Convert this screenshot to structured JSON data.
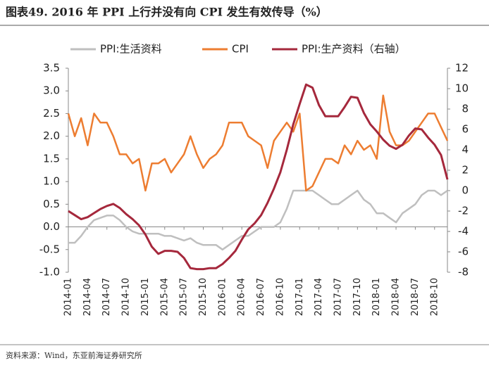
{
  "chart_data": {
    "type": "line",
    "title": "图表49. 2016 年 PPI 上行并没有向 CPI 发生有效传导（%）",
    "source": "资料来源：Wind，东亚前海证券研究所",
    "categories": [
      "2014-01",
      null,
      null,
      "2014-04",
      null,
      null,
      "2014-07",
      null,
      null,
      "2014-10",
      null,
      null,
      "2015-01",
      null,
      null,
      "2015-04",
      null,
      null,
      "2015-07",
      null,
      null,
      "2015-10",
      null,
      null,
      "2016-01",
      null,
      null,
      "2016-04",
      null,
      null,
      "2016-07",
      null,
      null,
      "2016-10",
      null,
      null,
      "2017-01",
      null,
      null,
      "2017-04",
      null,
      null,
      "2017-07",
      null,
      null,
      "2017-10",
      null,
      null,
      "2018-01",
      null,
      null,
      "2018-04",
      null,
      null,
      "2018-07",
      null,
      null,
      "2018-10",
      null,
      null
    ],
    "ylim": [
      -1.0,
      3.5
    ],
    "yticks": [
      {
        "value": -1.0,
        "label": "-1.0"
      },
      -0.5,
      {
        "value": 0.0,
        "label": "0.0"
      },
      0.5,
      {
        "value": 1.0,
        "label": "1.0"
      },
      1.5,
      {
        "value": 2.0,
        "label": "2.0"
      },
      2.5,
      {
        "value": 3.0,
        "label": "3.0"
      },
      3.5
    ],
    "y2lim": [
      -8,
      12
    ],
    "y2ticks": [
      -8,
      -6,
      -4,
      -2,
      0,
      2,
      4,
      6,
      8,
      10,
      12
    ],
    "legend": "top",
    "series": [
      {
        "name": "PPI:生活资料",
        "color": "#bfbfbf",
        "values": [
          -0.35,
          -0.35,
          -0.2,
          0.0,
          0.15,
          0.2,
          0.25,
          0.25,
          0.15,
          0.0,
          -0.1,
          -0.15,
          -0.15,
          -0.15,
          -0.15,
          -0.2,
          -0.2,
          -0.25,
          -0.3,
          -0.25,
          -0.35,
          -0.4,
          -0.4,
          -0.4,
          -0.5,
          -0.4,
          -0.3,
          -0.2,
          -0.2,
          -0.1,
          0.0,
          0.0,
          0.0,
          0.1,
          0.4,
          0.8,
          0.8,
          0.8,
          0.8,
          0.7,
          0.6,
          0.5,
          0.5,
          0.6,
          0.7,
          0.8,
          0.6,
          0.5,
          0.3,
          0.3,
          0.2,
          0.1,
          0.3,
          0.4,
          0.5,
          0.7,
          0.8,
          0.8,
          0.7,
          0.8
        ]
      },
      {
        "name": "CPI",
        "color": "#ed7d31",
        "values": [
          2.5,
          2.0,
          2.4,
          1.8,
          2.5,
          2.3,
          2.3,
          2.0,
          1.6,
          1.6,
          1.4,
          1.5,
          0.8,
          1.4,
          1.4,
          1.5,
          1.2,
          1.4,
          1.6,
          2.0,
          1.6,
          1.3,
          1.5,
          1.6,
          1.8,
          2.3,
          2.3,
          2.3,
          2.0,
          1.9,
          1.8,
          1.3,
          1.9,
          2.1,
          2.3,
          2.1,
          2.5,
          0.8,
          0.9,
          1.2,
          1.5,
          1.5,
          1.4,
          1.8,
          1.6,
          1.9,
          1.7,
          1.8,
          1.5,
          2.9,
          2.1,
          1.8,
          1.8,
          1.9,
          2.1,
          2.3,
          2.5,
          2.5,
          2.2,
          1.9
        ]
      },
      {
        "name": "PPI:生产资料（右轴）",
        "color": "#a5283c",
        "axis": "y2",
        "values": [
          -2.0,
          -2.4,
          -2.8,
          -2.6,
          -2.2,
          -1.8,
          -1.5,
          -1.3,
          -1.7,
          -2.3,
          -2.8,
          -3.4,
          -4.3,
          -5.5,
          -6.2,
          -5.9,
          -5.9,
          -6.0,
          -6.6,
          -7.6,
          -7.7,
          -7.7,
          -7.6,
          -7.6,
          -7.2,
          -6.6,
          -5.9,
          -4.8,
          -3.8,
          -3.2,
          -2.4,
          -1.2,
          0.2,
          1.8,
          4.0,
          6.5,
          8.5,
          10.4,
          10.1,
          8.4,
          7.3,
          7.3,
          7.3,
          8.2,
          9.2,
          9.1,
          7.6,
          6.5,
          5.8,
          5.0,
          4.4,
          4.1,
          4.5,
          5.4,
          6.1,
          6.0,
          5.2,
          4.5,
          3.5,
          1.1
        ]
      }
    ]
  }
}
